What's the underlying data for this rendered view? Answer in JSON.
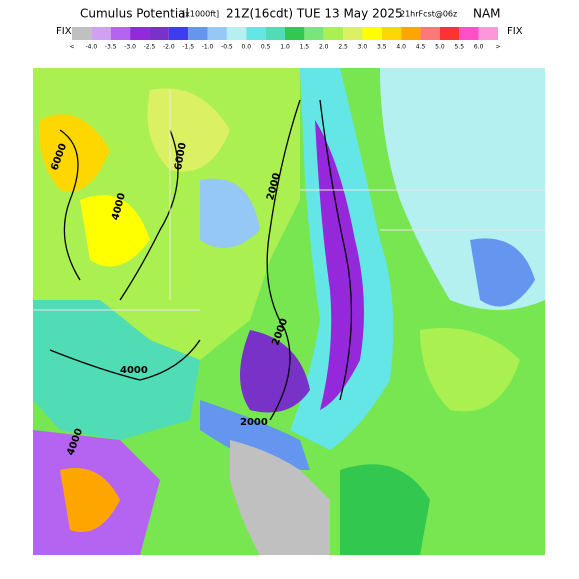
{
  "header": {
    "title": "Cumulus Potential",
    "units": "[x1000ft]",
    "valid_time": "21Z(16cdt) TUE 13 May 2025",
    "forecast": "21hrFcst@06z",
    "model": "NAM"
  },
  "colorbar": {
    "fix_left": "FIX",
    "fix_right": "FIX",
    "labels": [
      "<",
      "-4.0",
      "-3.5",
      "-3.0",
      "-2.5",
      "-2.0",
      "-1.5",
      "-1.0",
      "-0.5",
      "0.0",
      "0.5",
      "1.0",
      "1.5",
      "2.0",
      "2.5",
      "3.0",
      "3.5",
      "4.0",
      "4.5",
      "5.0",
      "5.5",
      "6.0",
      ">"
    ],
    "colors": [
      "#c0c0c0",
      "#d2a0f0",
      "#b464f0",
      "#9628dc",
      "#7832c8",
      "#3c3cf0",
      "#6496f0",
      "#96c8f5",
      "#b4f0f0",
      "#64e6e6",
      "#50dcb4",
      "#32c850",
      "#78e678",
      "#aaf050",
      "#dcf064",
      "#ffff00",
      "#ffd700",
      "#ffa500",
      "#ff7878",
      "#ff3232",
      "#ff50c8",
      "#ff96dc"
    ]
  },
  "map": {
    "contour_labels": [
      "6000",
      "6000",
      "4000",
      "2000",
      "2000",
      "4000",
      "2000",
      "4000"
    ]
  }
}
